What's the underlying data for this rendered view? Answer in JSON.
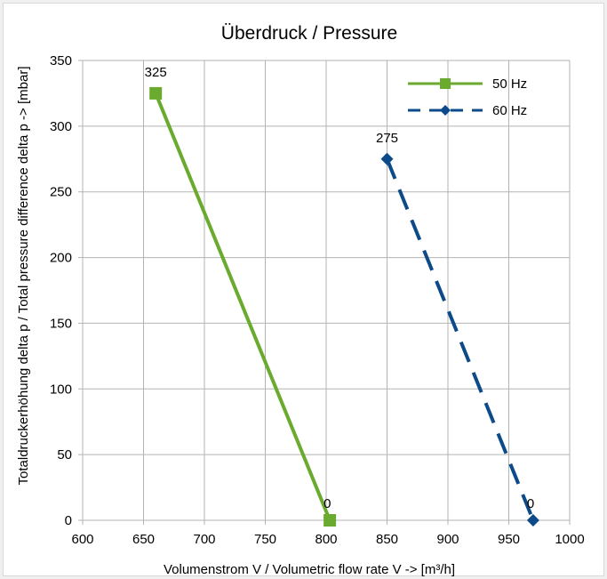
{
  "chart_data": {
    "type": "line",
    "title": "Überdruck / Pressure",
    "xlabel": "Volumenstrom V / Volumetric flow rate V -> [m³/h]",
    "ylabel": "Totaldruckerhöhung delta p / Total pressure difference delta p -> [mbar]",
    "xlim": [
      600,
      1000
    ],
    "ylim": [
      0,
      350
    ],
    "xticks": [
      600,
      650,
      700,
      750,
      800,
      850,
      900,
      950,
      1000
    ],
    "yticks": [
      0,
      50,
      100,
      150,
      200,
      250,
      300,
      350
    ],
    "grid": true,
    "legend_position": "top-right",
    "series": [
      {
        "name": "50 Hz",
        "color": "#6aaa2f",
        "marker": "square",
        "line_style": "solid",
        "points": [
          {
            "x": 660,
            "y": 325,
            "label": "325"
          },
          {
            "x": 803,
            "y": 0,
            "label": "0"
          }
        ]
      },
      {
        "name": "60 Hz",
        "color": "#0d4a8a",
        "marker": "diamond",
        "line_style": "dashed",
        "points": [
          {
            "x": 850,
            "y": 275,
            "label": "275"
          },
          {
            "x": 970,
            "y": 0,
            "label": "0"
          }
        ]
      }
    ]
  }
}
